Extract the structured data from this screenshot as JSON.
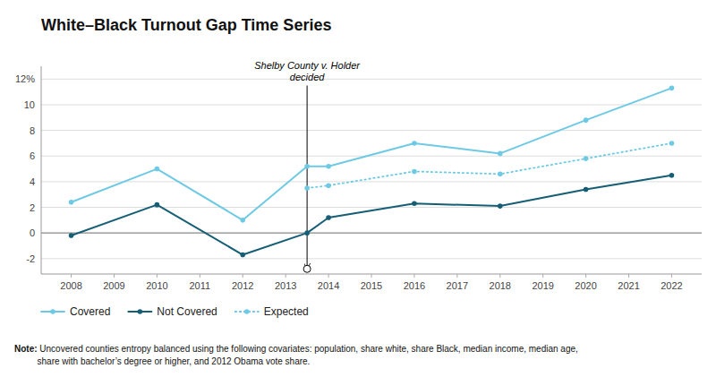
{
  "chart_data": {
    "type": "line",
    "title": "White–Black Turnout Gap Time Series",
    "series": [
      {
        "name": "Covered",
        "color": "#6ecae4",
        "line_style": "solid",
        "marker": "circle",
        "x": [
          2008,
          2010,
          2012,
          2013.5,
          2014,
          2016,
          2018,
          2020,
          2022
        ],
        "values": [
          2.4,
          5.0,
          1.0,
          5.2,
          5.2,
          7.0,
          6.2,
          8.8,
          11.3
        ]
      },
      {
        "name": "Not Covered",
        "color": "#155e75",
        "line_style": "solid",
        "marker": "circle",
        "x": [
          2008,
          2010,
          2012,
          2013.5,
          2014,
          2016,
          2018,
          2020,
          2022
        ],
        "values": [
          -0.2,
          2.2,
          -1.7,
          0.0,
          1.2,
          2.3,
          2.1,
          3.4,
          4.5
        ]
      },
      {
        "name": "Expected",
        "color": "#6ecae4",
        "line_style": "dotted",
        "marker": "circle",
        "x": [
          2013.5,
          2014,
          2016,
          2018,
          2020,
          2022
        ],
        "values": [
          3.5,
          3.7,
          4.8,
          4.6,
          5.8,
          7.0
        ]
      }
    ],
    "xlim": [
      2007.3,
      2022.7
    ],
    "xticks": [
      2008,
      2009,
      2010,
      2011,
      2012,
      2013,
      2014,
      2015,
      2016,
      2017,
      2018,
      2019,
      2020,
      2021,
      2022
    ],
    "ylim": [
      -3.2,
      13.0
    ],
    "yticks": [
      -2,
      0,
      2,
      4,
      6,
      8,
      10,
      {
        "value": 12,
        "label": "12%"
      }
    ],
    "grid": true,
    "legend": "bottom",
    "annotations": [
      {
        "text": "Shelby County v. Holder\ndecided",
        "x": 2013.5,
        "y_top": 11.5,
        "y_bottom": -2.8
      }
    ],
    "note_label": "Note:",
    "note": " Uncovered counties entropy balanced using the following covariates: population, share white, share Black, median income, median age,\nshare with bachelor’s degree or higher, and 2012 Obama vote share."
  }
}
